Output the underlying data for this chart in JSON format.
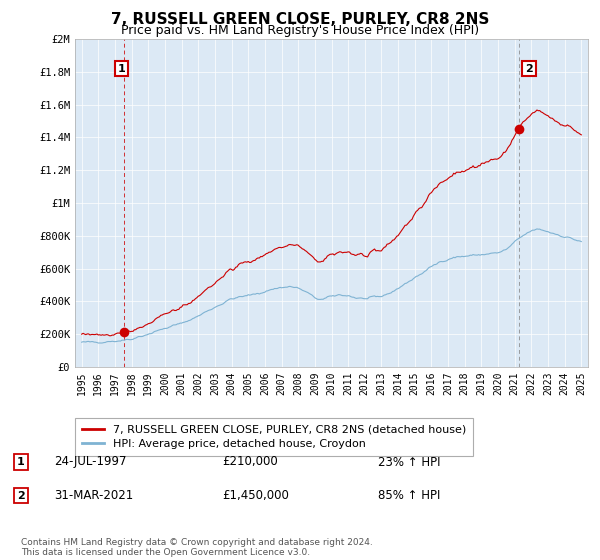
{
  "title": "7, RUSSELL GREEN CLOSE, PURLEY, CR8 2NS",
  "subtitle": "Price paid vs. HM Land Registry's House Price Index (HPI)",
  "legend_line1": "7, RUSSELL GREEN CLOSE, PURLEY, CR8 2NS (detached house)",
  "legend_line2": "HPI: Average price, detached house, Croydon",
  "annotation1_label": "1",
  "annotation1_date": "24-JUL-1997",
  "annotation1_price": "£210,000",
  "annotation1_hpi": "23% ↑ HPI",
  "annotation2_label": "2",
  "annotation2_date": "31-MAR-2021",
  "annotation2_price": "£1,450,000",
  "annotation2_hpi": "85% ↑ HPI",
  "footnote": "Contains HM Land Registry data © Crown copyright and database right 2024.\nThis data is licensed under the Open Government Licence v3.0.",
  "red_color": "#cc0000",
  "blue_color": "#7fb3d3",
  "grid_color": "#cccccc",
  "plot_bg_color": "#dce9f5",
  "background_color": "#ffffff",
  "ylim": [
    0,
    2000000
  ],
  "yticks": [
    0,
    200000,
    400000,
    600000,
    800000,
    1000000,
    1200000,
    1400000,
    1600000,
    1800000,
    2000000
  ],
  "ytick_labels": [
    "£0",
    "£200K",
    "£400K",
    "£600K",
    "£800K",
    "£1M",
    "£1.2M",
    "£1.4M",
    "£1.6M",
    "£1.8M",
    "£2M"
  ],
  "sale1_year": 1997.56,
  "sale1_price": 210000,
  "sale2_year": 2021.25,
  "sale2_price": 1450000
}
